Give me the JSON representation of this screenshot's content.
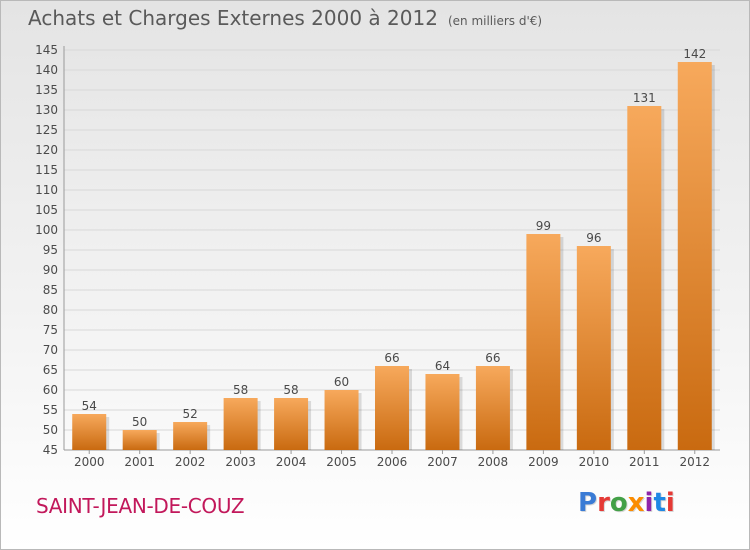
{
  "header": {
    "title": "Achats et Charges Externes 2000 à 2012",
    "subtitle": "(en milliers d'€)"
  },
  "footer": {
    "place": "SAINT-JEAN-DE-COUZ",
    "logo_text": "Proxiti",
    "logo_letters": [
      {
        "ch": "P",
        "color": "#3a7bd5"
      },
      {
        "ch": "r",
        "color": "#e53935"
      },
      {
        "ch": "o",
        "color": "#43a047"
      },
      {
        "ch": "x",
        "color": "#fb8c00"
      },
      {
        "ch": "i",
        "color": "#8e24aa"
      },
      {
        "ch": "t",
        "color": "#1e88e5"
      },
      {
        "ch": "i",
        "color": "#e53935"
      }
    ]
  },
  "colors": {
    "bar_top": "#f7a95c",
    "bar_bottom": "#c96a10",
    "grid": "#d8d8d8",
    "text": "#4a4a4a"
  },
  "chart_data": {
    "type": "bar",
    "title": "Achats et Charges Externes 2000 à 2012",
    "subtitle": "(en milliers d'€)",
    "categories": [
      "2000",
      "2001",
      "2002",
      "2003",
      "2004",
      "2005",
      "2006",
      "2007",
      "2008",
      "2009",
      "2010",
      "2011",
      "2012"
    ],
    "values": [
      54,
      50,
      52,
      58,
      58,
      60,
      66,
      64,
      66,
      99,
      96,
      131,
      142
    ],
    "ylim": [
      45,
      145
    ],
    "ytick_step": 5,
    "grid": true,
    "data_labels": true
  }
}
